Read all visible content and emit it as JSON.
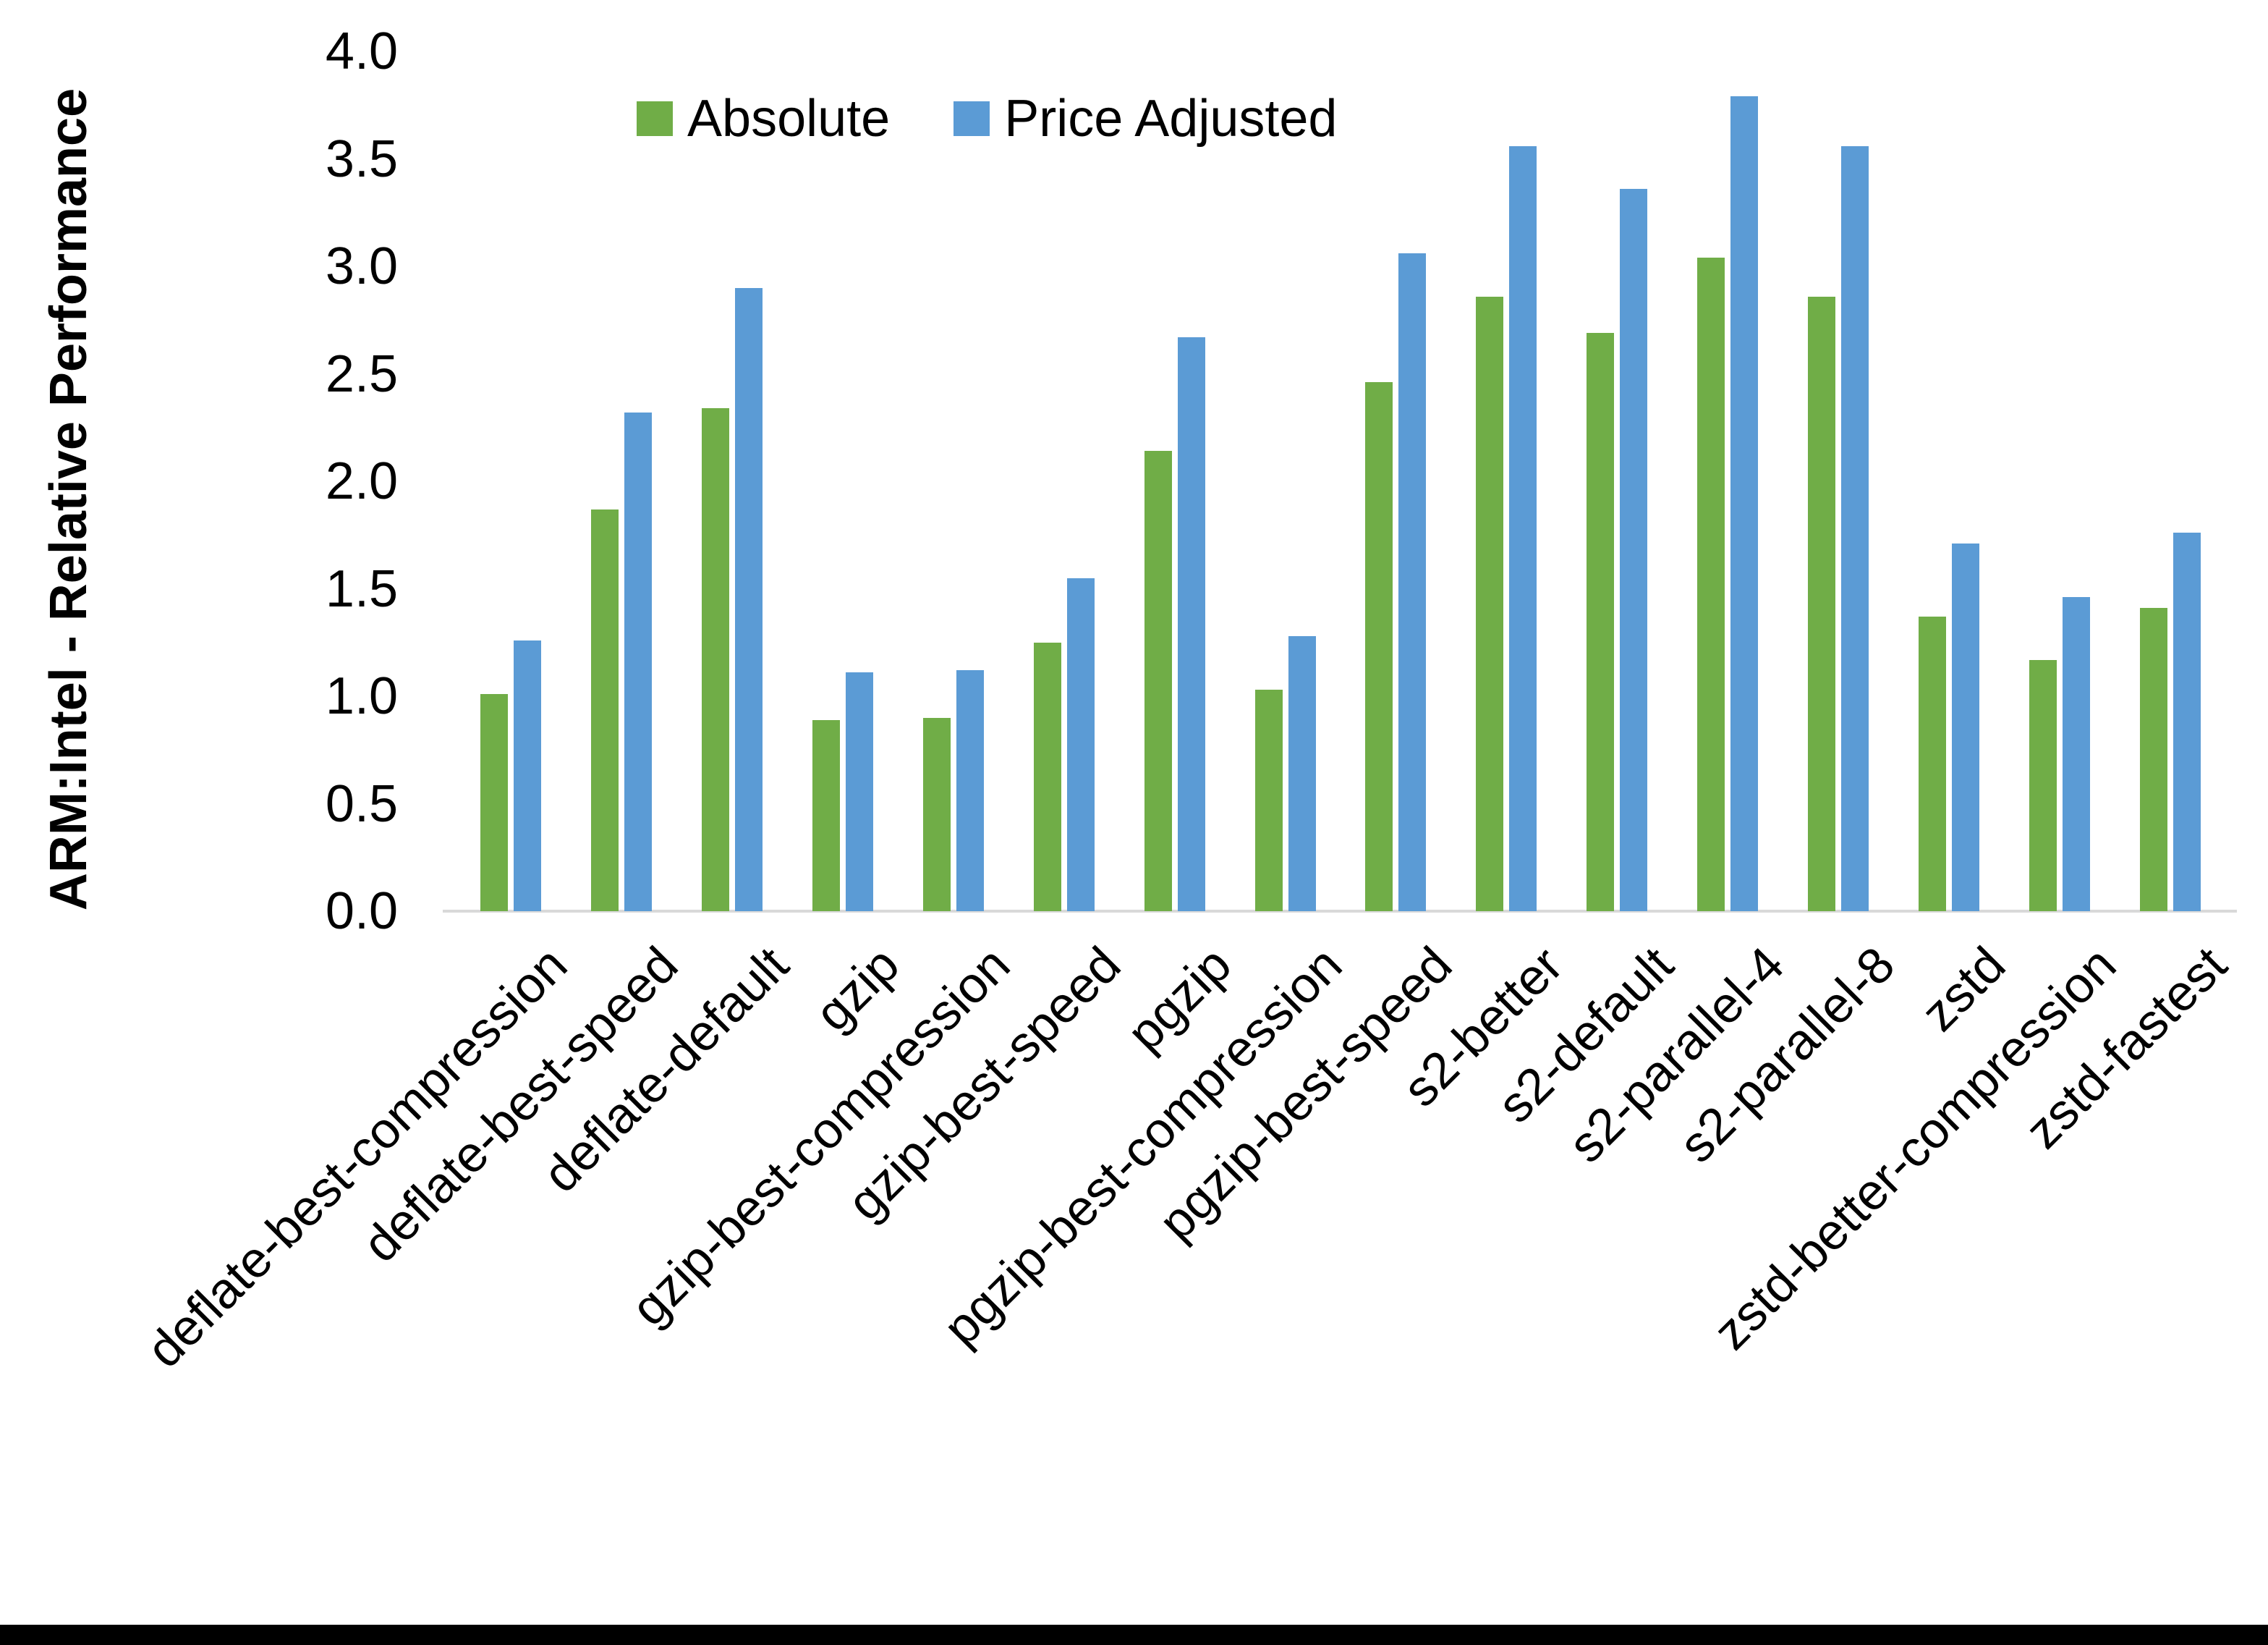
{
  "chart_data": {
    "type": "bar",
    "title": "",
    "xlabel": "",
    "ylabel": "ARM:Intel - Relative Performance",
    "ylim": [
      0.0,
      4.0
    ],
    "ytick_step": 0.5,
    "ytick_labels": [
      "0.0",
      "0.5",
      "1.0",
      "1.5",
      "2.0",
      "2.5",
      "3.0",
      "3.5",
      "4.0"
    ],
    "grid": false,
    "legend_position": "top-center",
    "categories": [
      "deflate-best-compression",
      "deflate-best-speed",
      "deflate-default",
      "gzip",
      "gzip-best-compression",
      "gzip-best-speed",
      "pgzip",
      "pgzip-best-compression",
      "pgzip-best-speed",
      "s2-better",
      "s2-default",
      "s2-parallel-4",
      "s2-parallel-8",
      "zstd",
      "zstd-better-compression",
      "zstd-fastest"
    ],
    "series": [
      {
        "name": "Absolute",
        "color": "#70AD47",
        "values": [
          1.01,
          1.87,
          2.34,
          0.89,
          0.9,
          1.25,
          2.14,
          1.03,
          2.46,
          2.86,
          2.69,
          3.04,
          2.86,
          1.37,
          1.17,
          1.41
        ]
      },
      {
        "name": "Price Adjusted",
        "color": "#5B9BD5",
        "values": [
          1.26,
          2.32,
          2.9,
          1.11,
          1.12,
          1.55,
          2.67,
          1.28,
          3.06,
          3.56,
          3.36,
          3.79,
          3.56,
          1.71,
          1.46,
          1.76
        ]
      }
    ]
  },
  "colors": {
    "background": "#FFFFFF",
    "axis_line": "#D9D9D9",
    "text": "#000000",
    "bottom_border": "#000000"
  }
}
